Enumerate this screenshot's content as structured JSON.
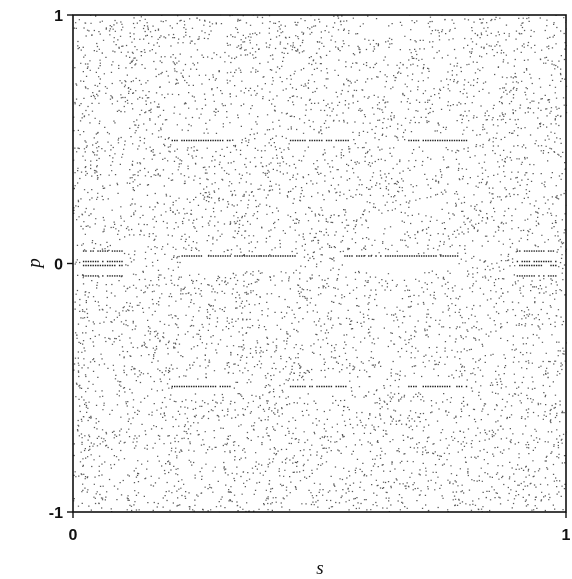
{
  "chart_data": {
    "type": "scatter",
    "title": "",
    "xlabel": "s",
    "ylabel": "p",
    "xlim": [
      0,
      1
    ],
    "ylim": [
      -1,
      1
    ],
    "x_ticks": [
      {
        "value": 0,
        "label": "0"
      },
      {
        "value": 1,
        "label": "1"
      }
    ],
    "y_ticks": [
      {
        "value": 1,
        "label": "1"
      },
      {
        "value": 0,
        "label": "0"
      },
      {
        "value": -1,
        "label": "-1"
      }
    ],
    "grid": false,
    "legend": "none",
    "marker_color": "#222222",
    "series": [
      {
        "description_kind": "chaotic-sea",
        "distribution": "uniform",
        "point_count_estimate": 12000
      }
    ],
    "regular_islands": [
      {
        "s_range": [
          0.02,
          0.1
        ],
        "p_range": [
          -0.05,
          0.05
        ],
        "kind": "island-chain"
      },
      {
        "s_range": [
          0.9,
          0.98
        ],
        "p_range": [
          -0.05,
          0.05
        ],
        "kind": "island-chain"
      },
      {
        "s_range": [
          0.22,
          0.45
        ],
        "p_range": [
          -0.03,
          0.03
        ],
        "kind": "central-island"
      },
      {
        "s_range": [
          0.55,
          0.78
        ],
        "p_range": [
          -0.03,
          0.03
        ],
        "kind": "central-island"
      },
      {
        "s_range": [
          0.2,
          0.32
        ],
        "p_range": [
          0.47,
          0.52
        ],
        "kind": "resonance-chain"
      },
      {
        "s_range": [
          0.44,
          0.56
        ],
        "p_range": [
          0.47,
          0.52
        ],
        "kind": "resonance-chain"
      },
      {
        "s_range": [
          0.68,
          0.8
        ],
        "p_range": [
          0.47,
          0.52
        ],
        "kind": "resonance-chain"
      },
      {
        "s_range": [
          0.2,
          0.32
        ],
        "p_range": [
          -0.52,
          -0.47
        ],
        "kind": "resonance-chain"
      },
      {
        "s_range": [
          0.44,
          0.56
        ],
        "p_range": [
          -0.52,
          -0.47
        ],
        "kind": "resonance-chain"
      },
      {
        "s_range": [
          0.68,
          0.8
        ],
        "p_range": [
          -0.52,
          -0.47
        ],
        "kind": "resonance-chain"
      }
    ]
  }
}
